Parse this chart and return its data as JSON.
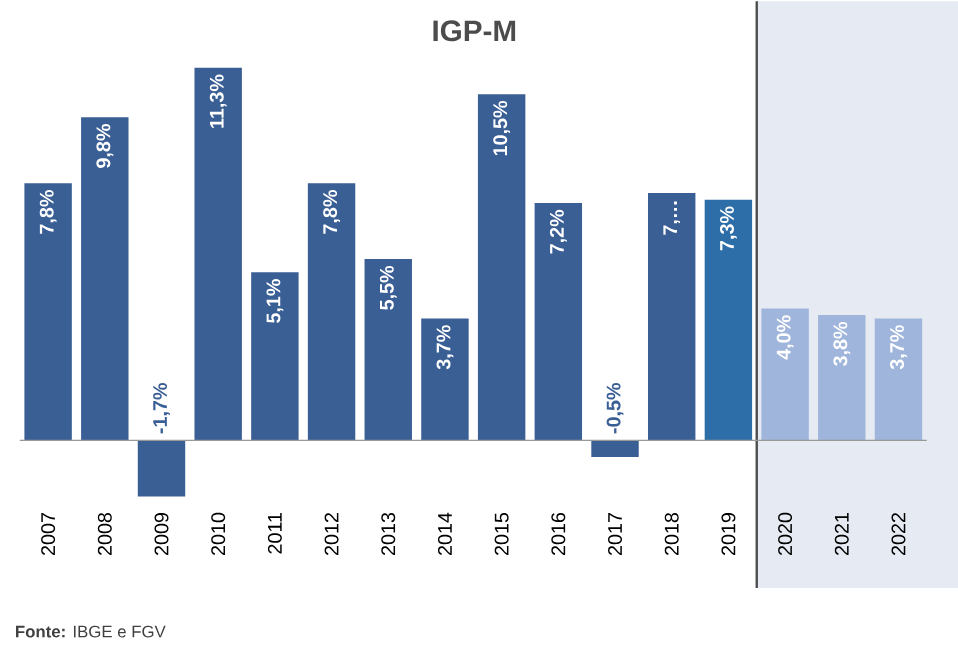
{
  "chart_data": {
    "type": "bar",
    "title": "IGP-M",
    "categories": [
      "2007",
      "2008",
      "2009",
      "2010",
      "2011",
      "2012",
      "2013",
      "2014",
      "2015",
      "2016",
      "2017",
      "2018",
      "2019",
      "2020",
      "2021",
      "2022"
    ],
    "values": [
      7.8,
      9.8,
      -1.7,
      11.3,
      5.1,
      7.8,
      5.5,
      3.7,
      10.5,
      7.2,
      -0.5,
      7.5,
      7.3,
      4.0,
      3.8,
      3.7
    ],
    "colors": [
      "#3a5f95",
      "#3a5f95",
      "#3a5f95",
      "#3a5f95",
      "#3a5f95",
      "#3a5f95",
      "#3a5f95",
      "#3a5f95",
      "#3a5f95",
      "#3a5f95",
      "#3a5f95",
      "#3a5f95",
      "#2e6ea8",
      "#9fb5db",
      "#9fb5db",
      "#9fb5db"
    ],
    "value_labels": [
      "7,8%",
      "9,8%",
      "-1,7%",
      "11,3%",
      "5,1%",
      "7,8%",
      "5,5%",
      "3,7%",
      "10,5%",
      "7,2%",
      "-0,5%",
      "7,…",
      "7,3%",
      "4,0%",
      "3,8%",
      "3,7%"
    ],
    "bands": [
      {
        "axis": "x",
        "from": "2020",
        "to": "2022",
        "color": "#e6eaf2"
      }
    ],
    "annotations": [
      "**Fonte:** IBGE e FGV"
    ]
  }
}
